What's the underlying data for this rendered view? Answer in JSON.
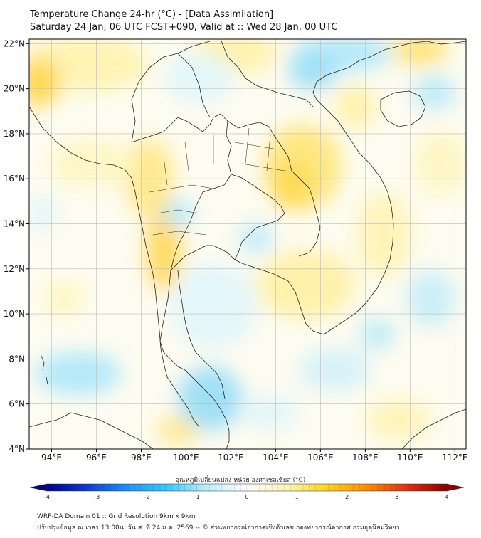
{
  "header": {
    "title_line1": "Temperature Change 24-hr (°C) - [Data Assimilation]",
    "title_line2": "Saturday 24 Jan, 06 UTC FCST+090, Valid at :: Wed 28 Jan, 00 UTC"
  },
  "map": {
    "lat_labels": [
      "22°N",
      "20°N",
      "18°N",
      "16°N",
      "14°N",
      "12°N",
      "10°N",
      "8°N",
      "6°N",
      "4°N"
    ],
    "lon_labels": [
      "94°E",
      "96°E",
      "98°E",
      "100°E",
      "102°E",
      "104°E",
      "106°E",
      "108°E",
      "110°E",
      "112°E"
    ],
    "lat_values": [
      22,
      20,
      18,
      16,
      14,
      12,
      10,
      8,
      6,
      4
    ],
    "lon_values": [
      94,
      96,
      98,
      100,
      102,
      104,
      106,
      108,
      110,
      112
    ],
    "extent": {
      "lon_min": 93,
      "lon_max": 112.5,
      "lat_min": 4,
      "lat_max": 22.2
    },
    "colors": {
      "land_border": "#222222",
      "grid": "#bbbbbb",
      "sea_base": "#fdfcf2"
    }
  },
  "colorbar": {
    "title": "อุณหภูมิเปลี่ยนแปลง หน่วย องศาเซลเซียส (°C)",
    "tick_labels": [
      "-4",
      "-3",
      "-2",
      "-1",
      "0",
      "1",
      "2",
      "3",
      "4"
    ],
    "tick_values": [
      -4,
      -3,
      -2,
      -1,
      0,
      1,
      2,
      3,
      4
    ],
    "range": [
      -4,
      4
    ],
    "colors": [
      "#00008b",
      "#0d3cd6",
      "#1e90ff",
      "#33ccff",
      "#bdeefb",
      "#ffffff",
      "#fff7b0",
      "#ffd21a",
      "#ff8c00",
      "#e03010",
      "#8b0000"
    ]
  },
  "footer": {
    "line1": "WRF-DA Domain 01 :: Grid Resolution 9km x 9km",
    "line2": "ปรับปรุงข้อมูล ณ เวลา 13:00น. วัน ส. ที่ 24 ม.ค. 2569 -- © ส่วนพยากรณ์อากาศเชิงตัวเลข กองพยากรณ์อากาศ กรมอุตุนิยมวิทยา"
  }
}
